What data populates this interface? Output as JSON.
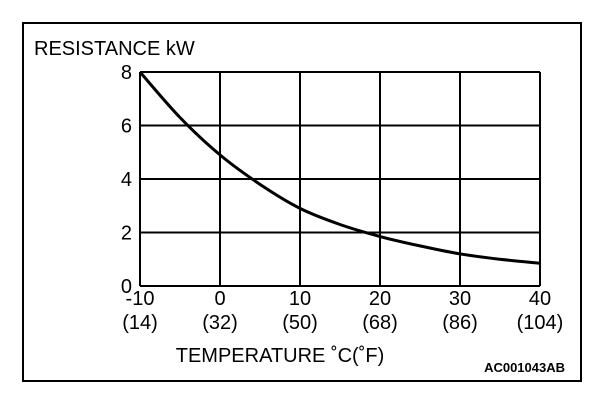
{
  "chart_data": {
    "type": "line",
    "ylabel": "RESISTANCE kW",
    "xlabel": "TEMPERATURE ˚C(˚F)",
    "figure_code": "AC001043AB",
    "xlim": [
      -10,
      40
    ],
    "ylim": [
      0,
      8
    ],
    "grid": true,
    "x_ticks": [
      {
        "value": -10,
        "celsius": "-10",
        "fahrenheit": "(14)"
      },
      {
        "value": 0,
        "celsius": "0",
        "fahrenheit": "(32)"
      },
      {
        "value": 10,
        "celsius": "10",
        "fahrenheit": "(50)"
      },
      {
        "value": 20,
        "celsius": "20",
        "fahrenheit": "(68)"
      },
      {
        "value": 30,
        "celsius": "30",
        "fahrenheit": "(86)"
      },
      {
        "value": 40,
        "celsius": "40",
        "fahrenheit": "(104)"
      }
    ],
    "y_ticks": [
      {
        "value": 0,
        "label": "0"
      },
      {
        "value": 2,
        "label": "2"
      },
      {
        "value": 4,
        "label": "4"
      },
      {
        "value": 6,
        "label": "6"
      },
      {
        "value": 8,
        "label": "8"
      }
    ],
    "series": [
      {
        "color": "#000000",
        "x": [
          -10,
          -5,
          0,
          5,
          10,
          15,
          20,
          25,
          30,
          35,
          40
        ],
        "y": [
          8.0,
          6.3,
          4.9,
          3.8,
          2.9,
          2.3,
          1.85,
          1.5,
          1.2,
          1.0,
          0.85
        ]
      }
    ]
  }
}
